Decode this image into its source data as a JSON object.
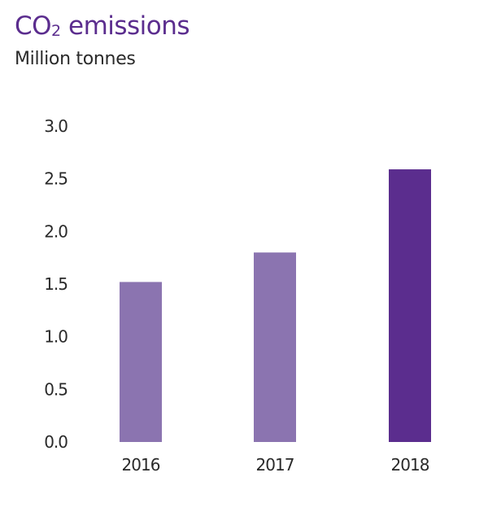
{
  "chart_data": {
    "type": "bar",
    "title": "CO2 emissions",
    "title_main": "CO",
    "title_subscript": "2",
    "title_rest": " emissions",
    "subtitle": "Million tonnes",
    "xlabel": "",
    "ylabel": "Million tonnes",
    "categories": [
      "2016",
      "2017",
      "2018"
    ],
    "values": [
      1.52,
      1.8,
      2.59
    ],
    "colors": [
      "#8b74b0",
      "#8b74b0",
      "#5b2d8e"
    ],
    "ylim": [
      0,
      3.0
    ],
    "yticks": [
      "0.0",
      "0.5",
      "1.0",
      "1.5",
      "2.0",
      "2.5",
      "3.0"
    ],
    "grid": false,
    "legend": "none"
  }
}
